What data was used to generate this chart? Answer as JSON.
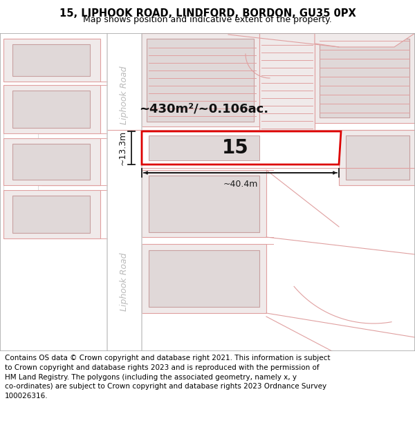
{
  "title": "15, LIPHOOK ROAD, LINDFORD, BORDON, GU35 0PX",
  "subtitle": "Map shows position and indicative extent of the property.",
  "footer_text": "Contains OS data © Crown copyright and database right 2021. This information is subject\nto Crown copyright and database rights 2023 and is reproduced with the permission of\nHM Land Registry. The polygons (including the associated geometry, namely x, y\nco-ordinates) are subject to Crown copyright and database rights 2023 Ordnance Survey\n100026316.",
  "bg_color": "#ffffff",
  "map_bg": "#ffffff",
  "road_color": "#f5e0e0",
  "building_outer_fill": "#f0eaea",
  "building_outer_edge": "#e0a0a0",
  "building_inner_fill": "#e0d8d8",
  "building_inner_edge": "#c8a0a0",
  "highlight_color": "#dd0000",
  "dim_line_color": "#1a1a1a",
  "road_line_color": "#cccccc",
  "road_text_color": "#bbbbbb",
  "area_text": "~430m²/~0.106ac.",
  "width_text": "~40.4m",
  "height_text": "~13.3m",
  "property_number": "15",
  "road_label": "Liphook Road",
  "title_fontsize": 10.5,
  "subtitle_fontsize": 9,
  "footer_fontsize": 7.5,
  "number_fontsize": 20,
  "area_fontsize": 13,
  "dim_fontsize": 9,
  "road_label_fontsize": 9
}
